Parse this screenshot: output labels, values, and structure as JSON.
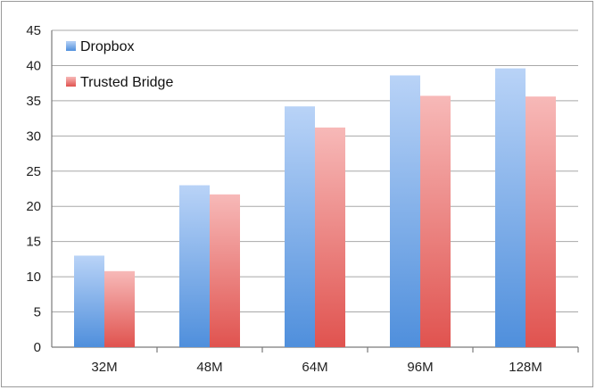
{
  "chart_data": {
    "type": "bar",
    "categories": [
      "32M",
      "48M",
      "64M",
      "96M",
      "128M"
    ],
    "series": [
      {
        "name": "Dropbox",
        "values": [
          13,
          23,
          34.2,
          38.6,
          39.6
        ],
        "color": "#8fb8f0"
      },
      {
        "name": "Trusted Bridge",
        "values": [
          10.8,
          21.7,
          31.2,
          35.7,
          35.6
        ],
        "color": "#f08a88"
      }
    ],
    "ylim": [
      0,
      45
    ],
    "yticks": [
      0,
      5,
      10,
      15,
      20,
      25,
      30,
      35,
      40,
      45
    ],
    "grid": true,
    "legend_position": "top-left",
    "title": "",
    "xlabel": "",
    "ylabel": ""
  }
}
